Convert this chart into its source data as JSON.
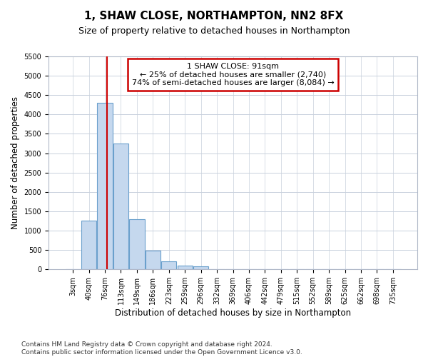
{
  "title": "1, SHAW CLOSE, NORTHAMPTON, NN2 8FX",
  "subtitle": "Size of property relative to detached houses in Northampton",
  "xlabel": "Distribution of detached houses by size in Northampton",
  "ylabel": "Number of detached properties",
  "categories": [
    "3sqm",
    "40sqm",
    "76sqm",
    "113sqm",
    "149sqm",
    "186sqm",
    "223sqm",
    "259sqm",
    "296sqm",
    "332sqm",
    "369sqm",
    "406sqm",
    "442sqm",
    "479sqm",
    "515sqm",
    "552sqm",
    "589sqm",
    "625sqm",
    "662sqm",
    "698sqm",
    "735sqm"
  ],
  "bar_heights": [
    0,
    1250,
    4300,
    3250,
    1300,
    490,
    200,
    100,
    80,
    0,
    0,
    0,
    0,
    0,
    0,
    0,
    0,
    0,
    0,
    0,
    0
  ],
  "bar_color": "#c5d8ee",
  "bar_edge_color": "#6aa0cc",
  "property_line_label": "1 SHAW CLOSE: 91sqm",
  "annotation_line1": "← 25% of detached houses are smaller (2,740)",
  "annotation_line2": "74% of semi-detached houses are larger (8,084) →",
  "annotation_box_color": "#ffffff",
  "annotation_border_color": "#cc0000",
  "vline_color": "#cc0000",
  "vline_x_index": 2.15,
  "ylim": [
    0,
    5500
  ],
  "yticks": [
    0,
    500,
    1000,
    1500,
    2000,
    2500,
    3000,
    3500,
    4000,
    4500,
    5000,
    5500
  ],
  "footnote": "Contains HM Land Registry data © Crown copyright and database right 2024.\nContains public sector information licensed under the Open Government Licence v3.0.",
  "bg_color": "#ffffff",
  "grid_color": "#c8d0dc",
  "title_fontsize": 11,
  "subtitle_fontsize": 9,
  "axis_label_fontsize": 8.5,
  "tick_fontsize": 7,
  "footnote_fontsize": 6.5
}
